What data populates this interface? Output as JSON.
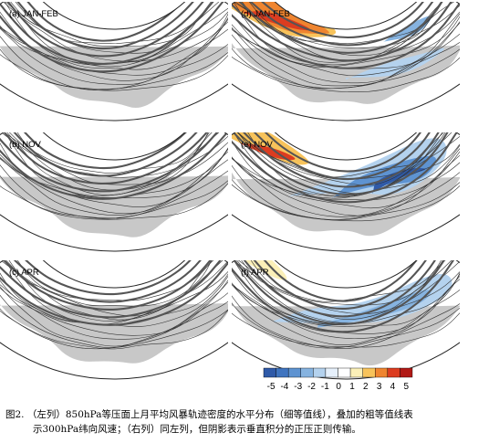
{
  "panels": [
    {
      "id": "a",
      "label": "(a) JAN-FEB",
      "column": "left",
      "shading": "none"
    },
    {
      "id": "b",
      "label": "(b) NOV",
      "column": "left",
      "shading": "none"
    },
    {
      "id": "c",
      "label": "(c) APR",
      "column": "left",
      "shading": "none"
    },
    {
      "id": "d",
      "label": "(d) JAN-FEB",
      "column": "right",
      "shading": "jan-feb"
    },
    {
      "id": "e",
      "label": "(e) NOV",
      "column": "right",
      "shading": "nov"
    },
    {
      "id": "f",
      "label": "(f) APR",
      "column": "right",
      "shading": "apr"
    }
  ],
  "colorbar": {
    "ticks": [
      "-5",
      "-4",
      "-3",
      "-2",
      "-1",
      "0",
      "1",
      "2",
      "3",
      "4",
      "5"
    ],
    "colors": [
      "#2f5aa8",
      "#3f74bf",
      "#5e93d1",
      "#86b3e0",
      "#b4d2ee",
      "#e6f0fb",
      "#ffffff",
      "#fbf0b8",
      "#f7c35b",
      "#ef8530",
      "#dc3c20",
      "#b11a16"
    ]
  },
  "caption": {
    "line1": "图2. （左列）850hPa等压面上月平均风暴轨迹密度的水平分布（细等值线），叠加的粗等值线表",
    "line2": "示300hPa纬向风速；（右列）同左列，但阴影表示垂直积分的正压正则传输。"
  }
}
